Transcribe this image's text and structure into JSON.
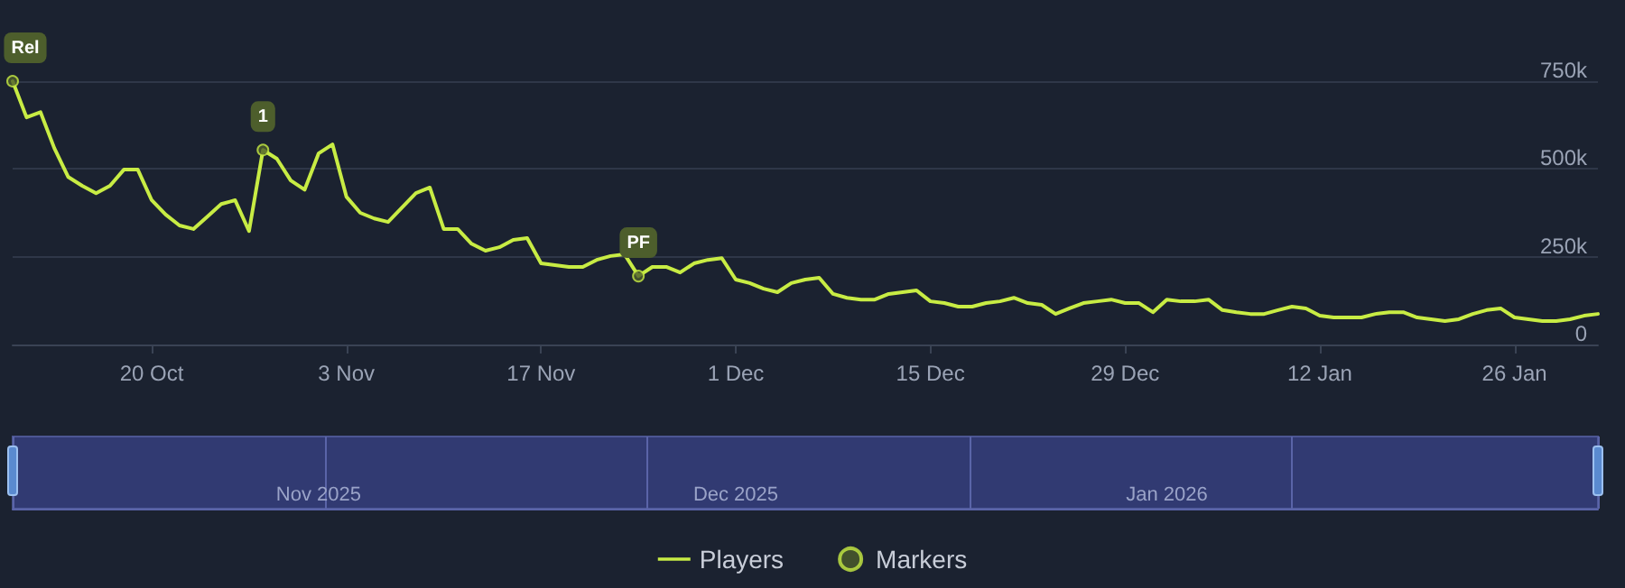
{
  "chart_data": {
    "type": "line",
    "xlim": [
      "2025-10-10",
      "2026-02-01"
    ],
    "xticks": [
      {
        "value": "2025-10-20",
        "label": "20 Oct"
      },
      {
        "value": "2025-11-03",
        "label": "3 Nov"
      },
      {
        "value": "2025-11-17",
        "label": "17 Nov"
      },
      {
        "value": "2025-12-01",
        "label": "1 Dec"
      },
      {
        "value": "2025-12-15",
        "label": "15 Dec"
      },
      {
        "value": "2025-12-29",
        "label": "29 Dec"
      },
      {
        "value": "2026-01-12",
        "label": "12 Jan"
      },
      {
        "value": "2026-01-26",
        "label": "26 Jan"
      }
    ],
    "x2lim": [
      "2025-10-10",
      "2026-02-01"
    ],
    "x2ticks": [
      {
        "value": "2025-11-01",
        "label": "Nov 2025"
      },
      {
        "value": "2025-12-01",
        "label": "Dec 2025"
      },
      {
        "value": "2026-01-01",
        "label": "Jan 2026"
      }
    ],
    "ylim": [
      0,
      750000
    ],
    "yticks": [
      {
        "value": 0,
        "label": "0"
      },
      {
        "value": 250000,
        "label": "250k"
      },
      {
        "value": 500000,
        "label": "500k"
      },
      {
        "value": 750000,
        "label": "750k"
      }
    ],
    "grid": "y",
    "legend": "bottom",
    "line_style": "solid",
    "annotations": [
      {
        "text": "Rel",
        "x": "2025-10-10",
        "y": 750000
      },
      {
        "text": "1",
        "x": "2025-10-28",
        "y": 554000
      },
      {
        "text": "PF",
        "x": "2025-11-24",
        "y": 195000
      }
    ],
    "series": [
      {
        "name": "Players",
        "marker": "none",
        "color": "#c8ec44",
        "x": [
          "2025-10-10",
          "2025-10-11",
          "2025-10-12",
          "2025-10-13",
          "2025-10-14",
          "2025-10-15",
          "2025-10-16",
          "2025-10-17",
          "2025-10-18",
          "2025-10-19",
          "2025-10-20",
          "2025-10-21",
          "2025-10-22",
          "2025-10-23",
          "2025-10-24",
          "2025-10-25",
          "2025-10-26",
          "2025-10-27",
          "2025-10-28",
          "2025-10-29",
          "2025-10-30",
          "2025-10-31",
          "2025-11-01",
          "2025-11-02",
          "2025-11-03",
          "2025-11-04",
          "2025-11-05",
          "2025-11-06",
          "2025-11-07",
          "2025-11-08",
          "2025-11-09",
          "2025-11-10",
          "2025-11-11",
          "2025-11-12",
          "2025-11-13",
          "2025-11-14",
          "2025-11-15",
          "2025-11-16",
          "2025-11-17",
          "2025-11-18",
          "2025-11-19",
          "2025-11-20",
          "2025-11-21",
          "2025-11-22",
          "2025-11-23",
          "2025-11-24",
          "2025-11-25",
          "2025-11-26",
          "2025-11-27",
          "2025-11-28",
          "2025-11-29",
          "2025-11-30",
          "2025-12-01",
          "2025-12-02",
          "2025-12-03",
          "2025-12-04",
          "2025-12-05",
          "2025-12-06",
          "2025-12-07",
          "2025-12-08",
          "2025-12-09",
          "2025-12-10",
          "2025-12-11",
          "2025-12-12",
          "2025-12-13",
          "2025-12-14",
          "2025-12-15",
          "2025-12-16",
          "2025-12-17",
          "2025-12-18",
          "2025-12-19",
          "2025-12-20",
          "2025-12-21",
          "2025-12-22",
          "2025-12-23",
          "2025-12-24",
          "2025-12-25",
          "2025-12-26",
          "2025-12-27",
          "2025-12-28",
          "2025-12-29",
          "2025-12-30",
          "2025-12-31",
          "2026-01-01",
          "2026-01-02",
          "2026-01-03",
          "2026-01-04",
          "2026-01-05",
          "2026-01-06",
          "2026-01-07",
          "2026-01-08",
          "2026-01-09",
          "2026-01-10",
          "2026-01-11",
          "2026-01-12",
          "2026-01-13",
          "2026-01-14",
          "2026-01-15",
          "2026-01-16",
          "2026-01-17",
          "2026-01-18",
          "2026-01-19",
          "2026-01-20",
          "2026-01-21",
          "2026-01-22",
          "2026-01-23",
          "2026-01-24",
          "2026-01-25",
          "2026-01-26",
          "2026-01-27",
          "2026-01-28",
          "2026-01-29",
          "2026-01-30",
          "2026-01-31",
          "2026-02-01"
        ],
        "values": [
          750000,
          647000,
          662000,
          559000,
          477000,
          452000,
          431000,
          452000,
          498000,
          498000,
          411000,
          370000,
          339000,
          329000,
          364000,
          400000,
          411000,
          323000,
          554000,
          529000,
          467000,
          441000,
          544000,
          570000,
          421000,
          375000,
          359000,
          349000,
          390000,
          431000,
          447000,
          329000,
          329000,
          287000,
          267000,
          277000,
          298000,
          303000,
          231000,
          226000,
          221000,
          221000,
          241000,
          252000,
          257000,
          195000,
          221000,
          221000,
          205000,
          231000,
          241000,
          246000,
          185000,
          175000,
          159000,
          149000,
          175000,
          185000,
          190000,
          144000,
          133000,
          128000,
          128000,
          144000,
          149000,
          154000,
          123000,
          118000,
          108000,
          108000,
          118000,
          123000,
          133000,
          118000,
          113000,
          87000,
          103000,
          118000,
          123000,
          128000,
          118000,
          118000,
          92000,
          128000,
          123000,
          123000,
          128000,
          98000,
          92000,
          87000,
          87000,
          98000,
          108000,
          103000,
          82000,
          77000,
          77000,
          77000,
          87000,
          92000,
          92000,
          77000,
          72000,
          67000,
          72000,
          87000,
          98000,
          103000,
          77000,
          72000,
          67000,
          67000,
          72000,
          82000,
          87000
        ]
      },
      {
        "name": "Markers",
        "type": "scatter",
        "marker": "circle",
        "color": "#4d5e2c",
        "x": [
          "2025-10-10",
          "2025-10-28",
          "2025-11-24"
        ],
        "values": [
          750000,
          554000,
          195000
        ]
      }
    ]
  }
}
